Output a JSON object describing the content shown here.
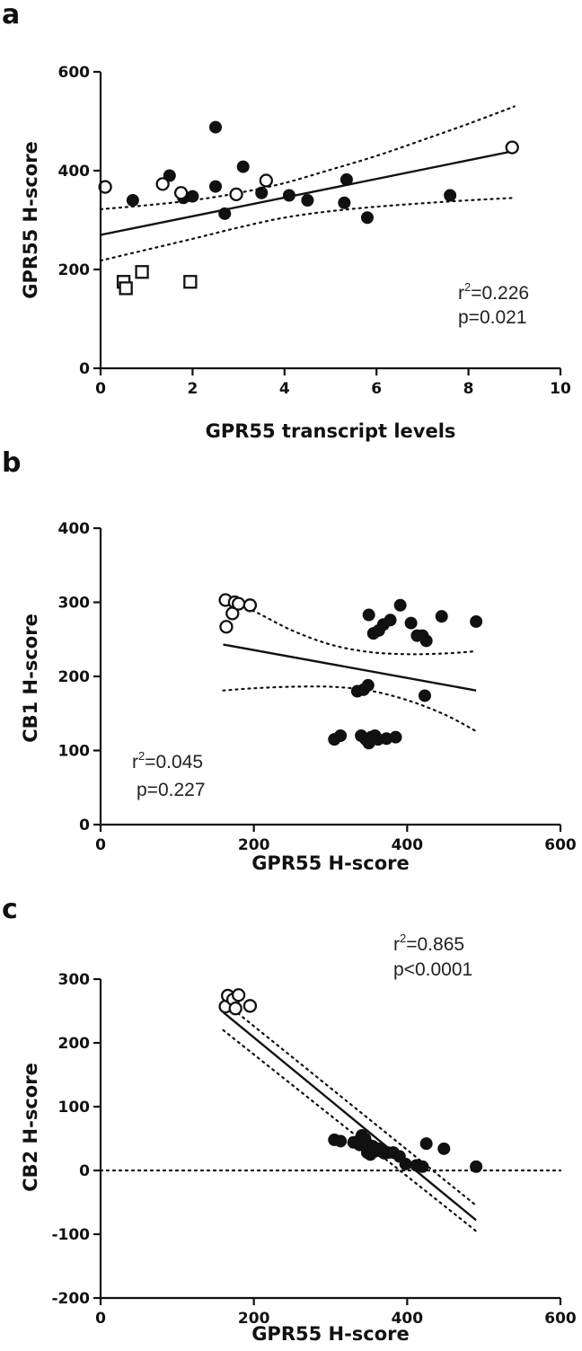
{
  "chart_data": [
    {
      "panel": "a",
      "type": "scatter",
      "xlabel": "GPR55 transcript levels",
      "ylabel": "GPR55 H-score",
      "xlim": [
        0,
        10
      ],
      "ylim": [
        0,
        600
      ],
      "xticks": [
        0,
        2,
        4,
        6,
        8,
        10
      ],
      "yticks": [
        0,
        200,
        400,
        600
      ],
      "stats": {
        "r2_label": "r",
        "r2_value": "=0.226",
        "p": "p=0.021"
      },
      "series": [
        {
          "marker": "filled-circle",
          "points": [
            [
              0.7,
              340
            ],
            [
              1.5,
              390
            ],
            [
              1.8,
              345
            ],
            [
              2.0,
              348
            ],
            [
              2.5,
              488
            ],
            [
              2.5,
              368
            ],
            [
              2.7,
              313
            ],
            [
              3.1,
              408
            ],
            [
              3.5,
              355
            ],
            [
              4.1,
              350
            ],
            [
              4.5,
              340
            ],
            [
              5.3,
              335
            ],
            [
              5.35,
              382
            ],
            [
              5.8,
              305
            ],
            [
              7.6,
              350
            ]
          ]
        },
        {
          "marker": "open-circle",
          "points": [
            [
              0.1,
              367
            ],
            [
              1.35,
              373
            ],
            [
              1.75,
              355
            ],
            [
              2.95,
              352
            ],
            [
              3.6,
              380
            ],
            [
              8.95,
              447
            ]
          ]
        },
        {
          "marker": "open-square",
          "points": [
            [
              0.5,
              175
            ],
            [
              0.55,
              162
            ],
            [
              0.9,
              195
            ],
            [
              1.95,
              175
            ]
          ]
        }
      ],
      "fit": {
        "x": [
          0,
          9
        ],
        "y": [
          270,
          440
        ]
      },
      "ci_upper": {
        "x": [
          0,
          1,
          2,
          3,
          4,
          5,
          6,
          7,
          8,
          9
        ],
        "y": [
          322,
          330,
          340,
          355,
          375,
          402,
          430,
          462,
          495,
          530
        ]
      },
      "ci_lower": {
        "x": [
          0,
          1,
          2,
          3,
          4,
          5,
          6,
          7,
          8,
          9
        ],
        "y": [
          218,
          240,
          262,
          285,
          305,
          318,
          327,
          334,
          340,
          345
        ]
      }
    },
    {
      "panel": "b",
      "type": "scatter",
      "xlabel": "GPR55 H-score",
      "ylabel": "CB1 H-score",
      "xlim": [
        0,
        600
      ],
      "ylim": [
        0,
        400
      ],
      "xticks": [
        0,
        200,
        400,
        600
      ],
      "yticks": [
        0,
        100,
        200,
        300,
        400
      ],
      "stats": {
        "r2_label": "r",
        "r2_value": "=0.045",
        "p": "p=0.227"
      },
      "series": [
        {
          "marker": "filled-circle",
          "points": [
            [
              305,
              115
            ],
            [
              313,
              120
            ],
            [
              335,
              180
            ],
            [
              343,
              182
            ],
            [
              349,
              188
            ],
            [
              340,
              120
            ],
            [
              346,
              115
            ],
            [
              350,
              110
            ],
            [
              353,
              118
            ],
            [
              358,
              120
            ],
            [
              362,
              115
            ],
            [
              373,
              116
            ],
            [
              385,
              118
            ],
            [
              350,
              283
            ],
            [
              356,
              258
            ],
            [
              363,
              262
            ],
            [
              369,
              270
            ],
            [
              378,
              276
            ],
            [
              391,
              296
            ],
            [
              405,
              272
            ],
            [
              413,
              255
            ],
            [
              420,
              255
            ],
            [
              425,
              248
            ],
            [
              445,
              281
            ],
            [
              490,
              274
            ],
            [
              423,
              174
            ]
          ]
        },
        {
          "marker": "open-circle",
          "points": [
            [
              163,
              303
            ],
            [
              164,
              267
            ],
            [
              172,
              285
            ],
            [
              175,
              300
            ],
            [
              180,
              298
            ],
            [
              195,
              296
            ]
          ]
        }
      ],
      "fit": {
        "x": [
          160,
          490
        ],
        "y": [
          243,
          181
        ]
      },
      "ci_upper": {
        "x": [
          160,
          200,
          250,
          300,
          350,
          400,
          450,
          490
        ],
        "y": [
          305,
          288,
          262,
          243,
          233,
          230,
          231,
          234
        ]
      },
      "ci_lower": {
        "x": [
          160,
          200,
          250,
          300,
          350,
          400,
          450,
          490
        ],
        "y": [
          181,
          184,
          186,
          186,
          181,
          168,
          148,
          126
        ]
      }
    },
    {
      "panel": "c",
      "type": "scatter",
      "xlabel": "GPR55 H-score",
      "ylabel": "CB2 H-score",
      "xlim": [
        0,
        600
      ],
      "ylim": [
        -200,
        300
      ],
      "xticks": [
        0,
        200,
        400,
        600
      ],
      "yticks": [
        -200,
        -100,
        0,
        100,
        200,
        300
      ],
      "stats": {
        "r2_label": "r",
        "r2_value": "=0.865",
        "p": "p<0.0001"
      },
      "series": [
        {
          "marker": "filled-circle",
          "points": [
            [
              305,
              48
            ],
            [
              313,
              46
            ],
            [
              330,
              44
            ],
            [
              338,
              40
            ],
            [
              341,
              55
            ],
            [
              345,
              50
            ],
            [
              348,
              28
            ],
            [
              350,
              40
            ],
            [
              352,
              25
            ],
            [
              355,
              38
            ],
            [
              358,
              30
            ],
            [
              362,
              34
            ],
            [
              366,
              30
            ],
            [
              370,
              27
            ],
            [
              375,
              28
            ],
            [
              382,
              28
            ],
            [
              390,
              22
            ],
            [
              398,
              10
            ],
            [
              412,
              8
            ],
            [
              420,
              6
            ],
            [
              425,
              42
            ],
            [
              448,
              34
            ],
            [
              490,
              6
            ]
          ]
        },
        {
          "marker": "open-circle",
          "points": [
            [
              163,
              257
            ],
            [
              166,
              274
            ],
            [
              173,
              268
            ],
            [
              176,
              254
            ],
            [
              180,
              275
            ],
            [
              195,
              258
            ]
          ]
        }
      ],
      "fit": {
        "x": [
          160,
          490
        ],
        "y": [
          248,
          -78
        ]
      },
      "ci_upper": {
        "x": [
          160,
          490
        ],
        "y": [
          265,
          -55
        ]
      },
      "ci_lower": {
        "x": [
          160,
          490
        ],
        "y": [
          220,
          -95
        ]
      },
      "ref_line": 0
    }
  ]
}
